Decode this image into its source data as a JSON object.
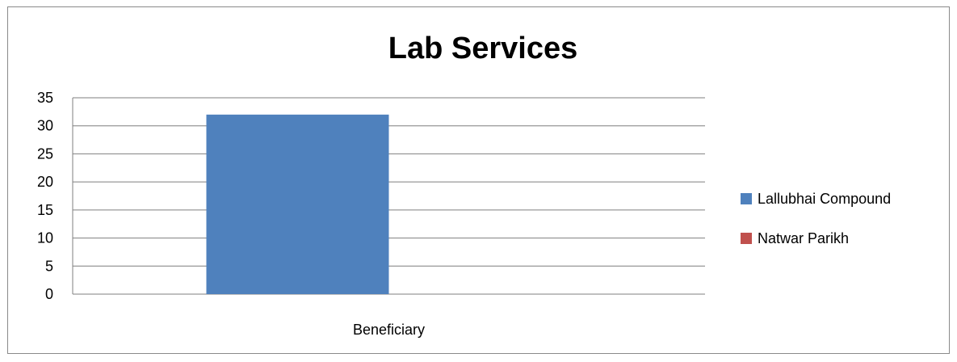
{
  "chart_data": {
    "type": "bar",
    "title": "Lab Services",
    "categories": [
      "Beneficiary"
    ],
    "series": [
      {
        "name": "Lallubhai Compound",
        "color": "#4F81BD",
        "values": [
          32
        ]
      },
      {
        "name": "Natwar Parikh",
        "color": "#C0504D",
        "values": [
          0
        ]
      }
    ],
    "ylim": [
      0,
      35
    ],
    "yticks": [
      0,
      5,
      10,
      15,
      20,
      25,
      30,
      35
    ],
    "grid": true,
    "legend_position": "right"
  }
}
